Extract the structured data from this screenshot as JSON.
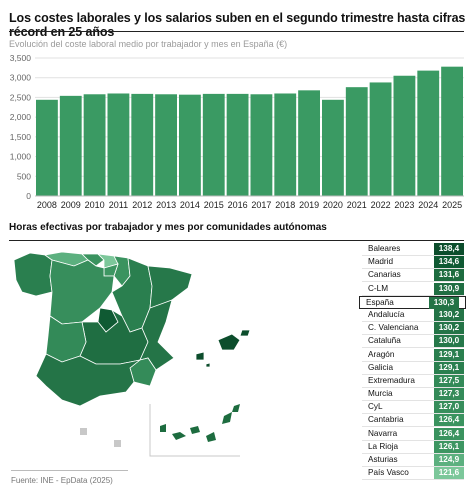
{
  "header": {
    "title": "Los costes laborales y los salarios suben en el segundo trimestre hasta cifras récord en 25 años"
  },
  "chart_data": [
    {
      "type": "bar",
      "title": "Evolución del coste laboral medio por trabajador y mes en España (€)",
      "categories": [
        "2008",
        "2009",
        "2010",
        "2011",
        "2012",
        "2013",
        "2014",
        "2015",
        "2016",
        "2017",
        "2018",
        "2019",
        "2020",
        "2021",
        "2022",
        "2023",
        "2024",
        "2025"
      ],
      "values": [
        2440,
        2540,
        2580,
        2600,
        2590,
        2580,
        2570,
        2590,
        2590,
        2580,
        2600,
        2680,
        2440,
        2760,
        2880,
        3050,
        3180,
        3280
      ],
      "ylim": [
        0,
        3500
      ],
      "yticks": [
        "0",
        "500",
        "1,000",
        "1,500",
        "2,000",
        "2,500",
        "3,000",
        "3,500"
      ],
      "ytick_values": [
        0,
        500,
        1000,
        1500,
        2000,
        2500,
        3000,
        3500
      ],
      "color": "#3a9a63",
      "grid": true
    },
    {
      "type": "table",
      "title": "Horas efectivas por trabajador y mes por comunidades autónomas",
      "rows": [
        {
          "region": "Baleares",
          "value": "138,4",
          "color": "#0c4d2c",
          "highlight": false
        },
        {
          "region": "Madrid",
          "value": "134,6",
          "color": "#0f5a33",
          "highlight": false
        },
        {
          "region": "Canarias",
          "value": "131,6",
          "color": "#1d6c3f",
          "highlight": false
        },
        {
          "region": "C-LM",
          "value": "130,9",
          "color": "#1f6e42",
          "highlight": false
        },
        {
          "region": "España",
          "value": "130,3",
          "color": "#237346",
          "highlight": true
        },
        {
          "region": "Andalucía",
          "value": "130,2",
          "color": "#247447",
          "highlight": false
        },
        {
          "region": "C. Valenciana",
          "value": "130,2",
          "color": "#247447",
          "highlight": false
        },
        {
          "region": "Cataluña",
          "value": "130,0",
          "color": "#26784a",
          "highlight": false
        },
        {
          "region": "Aragón",
          "value": "129,1",
          "color": "#2a7f4f",
          "highlight": false
        },
        {
          "region": "Galicia",
          "value": "129,1",
          "color": "#2a7f4f",
          "highlight": false
        },
        {
          "region": "Extremadura",
          "value": "127,5",
          "color": "#338a58",
          "highlight": false
        },
        {
          "region": "Murcia",
          "value": "127,3",
          "color": "#348b59",
          "highlight": false
        },
        {
          "region": "CyL",
          "value": "127,0",
          "color": "#378e5c",
          "highlight": false
        },
        {
          "region": "Cantabria",
          "value": "126,4",
          "color": "#3a935f",
          "highlight": false
        },
        {
          "region": "Navarra",
          "value": "126,4",
          "color": "#3a935f",
          "highlight": false
        },
        {
          "region": "La Rioja",
          "value": "126,1",
          "color": "#3d9662",
          "highlight": false
        },
        {
          "region": "Asturias",
          "value": "124,9",
          "color": "#5cb07f",
          "highlight": false
        },
        {
          "region": "País Vasco",
          "value": "121,6",
          "color": "#7cc79a",
          "highlight": false
        }
      ]
    }
  ],
  "footer": {
    "source": "Fuente: INE - EpData (2025)"
  }
}
